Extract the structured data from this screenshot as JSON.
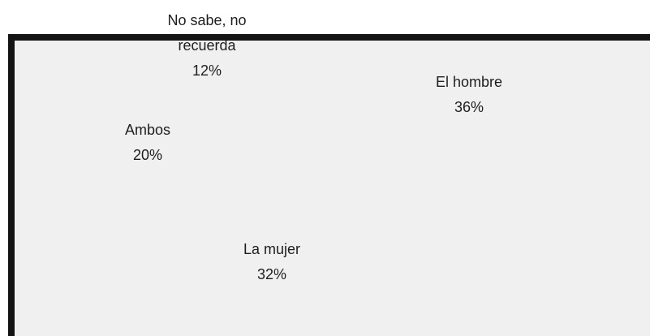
{
  "chart_data": {
    "type": "pie",
    "categories": [
      "El hombre",
      "La mujer",
      "Ambos",
      "No sabe, no recuerda"
    ],
    "values": [
      36,
      32,
      20,
      12
    ],
    "value_labels": [
      "36%",
      "32%",
      "20%",
      "12%"
    ]
  }
}
